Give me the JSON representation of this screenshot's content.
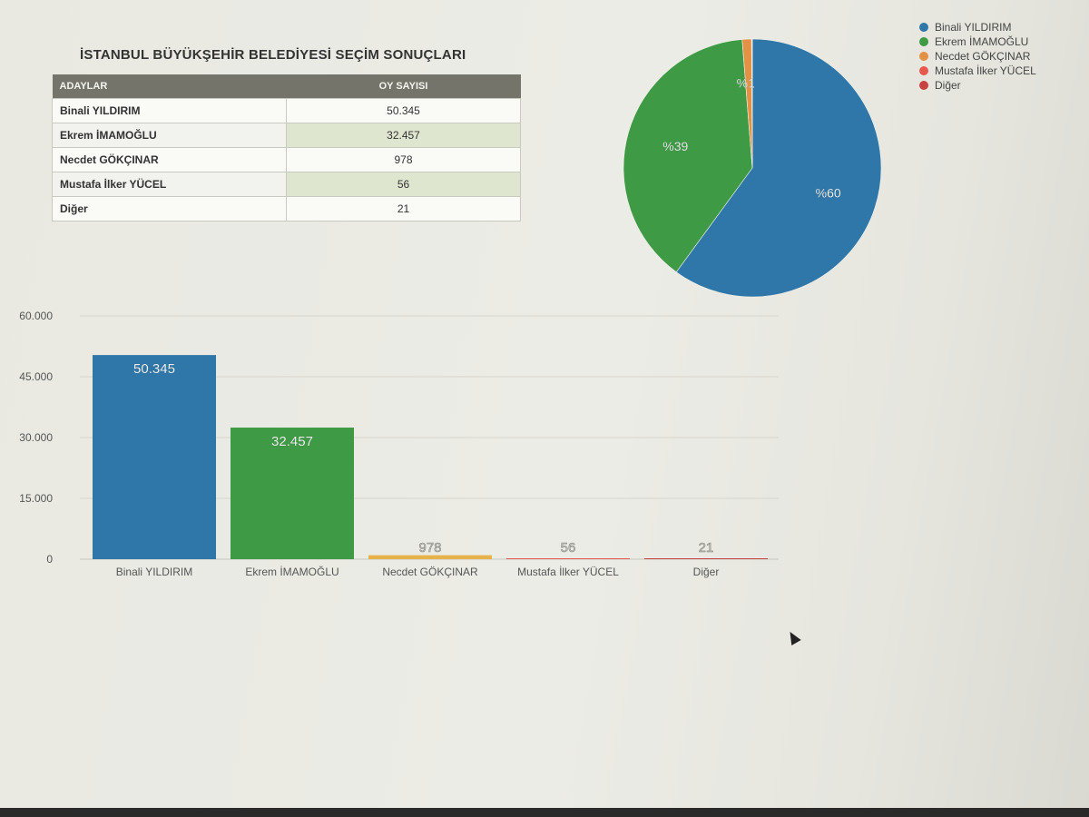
{
  "page_title": "İSTANBUL BÜYÜKŞEHİR BELEDİYESİ SEÇİM SONUÇLARI",
  "table": {
    "headers": {
      "candidates": "ADAYLAR",
      "votes": "OY SAYISI"
    },
    "rows": [
      {
        "name": "Binali YILDIRIM",
        "votes": "50.345"
      },
      {
        "name": "Ekrem İMAMOĞLU",
        "votes": "32.457"
      },
      {
        "name": "Necdet GÖKÇINAR",
        "votes": "978"
      },
      {
        "name": "Mustafa İlker YÜCEL",
        "votes": "56"
      },
      {
        "name": "Diğer",
        "votes": "21"
      }
    ]
  },
  "legend": [
    {
      "label": "Binali YILDIRIM",
      "color": "#2f77a8"
    },
    {
      "label": "Ekrem İMAMOĞLU",
      "color": "#3f9a45"
    },
    {
      "label": "Necdet GÖKÇINAR",
      "color": "#e39145"
    },
    {
      "label": "Mustafa İlker YÜCEL",
      "color": "#e8594d"
    },
    {
      "label": "Diğer",
      "color": "#c94242"
    }
  ],
  "chart_data": [
    {
      "type": "pie",
      "labels": [
        "Binali YILDIRIM",
        "Ekrem İMAMOĞLU",
        "Necdet GÖKÇINAR",
        "Mustafa İlker YÜCEL",
        "Diğer"
      ],
      "values": [
        50345,
        32457,
        978,
        56,
        21
      ],
      "slice_labels": [
        "%60",
        "%39",
        "%1",
        "",
        ""
      ],
      "colors": [
        "#2f77a8",
        "#3f9a45",
        "#e39145",
        "#e8594d",
        "#c94242"
      ],
      "legend_position": "top-right"
    },
    {
      "type": "bar",
      "categories": [
        "Binali YILDIRIM",
        "Ekrem İMAMOĞLU",
        "Necdet GÖKÇINAR",
        "Mustafa İlker YÜCEL",
        "Diğer"
      ],
      "values": [
        50345,
        32457,
        978,
        56,
        21
      ],
      "data_labels": [
        "50.345",
        "32.457",
        "978",
        "56",
        "21"
      ],
      "colors": [
        "#2f77a8",
        "#3f9a45",
        "#e8b24a",
        "#e8594d",
        "#c94242"
      ],
      "ylim": [
        0,
        60000
      ],
      "yticks": [
        0,
        15000,
        30000,
        45000,
        60000
      ],
      "ytick_labels": [
        "0",
        "15.000",
        "30.000",
        "45.000",
        "60.000"
      ],
      "grid": true
    }
  ]
}
